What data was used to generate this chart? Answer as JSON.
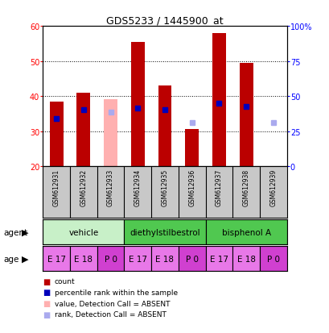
{
  "title": "GDS5233 / 1445900_at",
  "samples": [
    "GSM612931",
    "GSM612932",
    "GSM612933",
    "GSM612934",
    "GSM612935",
    "GSM612936",
    "GSM612937",
    "GSM612938",
    "GSM612939"
  ],
  "bar_values": [
    38.5,
    41.0,
    null,
    55.5,
    43.0,
    30.5,
    58.0,
    49.5,
    null
  ],
  "bar_absent_values": [
    null,
    null,
    39.0,
    null,
    null,
    null,
    null,
    null,
    null
  ],
  "rank_values": [
    33.5,
    36.0,
    null,
    36.5,
    36.0,
    null,
    38.0,
    37.0,
    null
  ],
  "rank_absent_values": [
    null,
    null,
    35.5,
    null,
    null,
    32.5,
    null,
    null,
    32.5
  ],
  "absent_bar": [
    false,
    false,
    true,
    false,
    false,
    false,
    false,
    false,
    true
  ],
  "absent_rank": [
    false,
    false,
    true,
    false,
    false,
    true,
    false,
    false,
    true
  ],
  "ylim_left": [
    20,
    60
  ],
  "ylim_right": [
    0,
    100
  ],
  "yticks_left": [
    20,
    30,
    40,
    50,
    60
  ],
  "yticks_right": [
    0,
    25,
    50,
    75,
    100
  ],
  "ytick_labels_right": [
    "0",
    "25",
    "50",
    "75",
    "100%"
  ],
  "agent_groups": [
    {
      "label": "vehicle",
      "cols": [
        0,
        1,
        2
      ],
      "color": "#c8f0c8"
    },
    {
      "label": "diethylstilbestrol",
      "cols": [
        3,
        4,
        5
      ],
      "color": "#50c850"
    },
    {
      "label": "bisphenol A",
      "cols": [
        6,
        7,
        8
      ],
      "color": "#50c850"
    }
  ],
  "age_labels": [
    "E 17",
    "E 18",
    "P 0",
    "E 17",
    "E 18",
    "P 0",
    "E 17",
    "E 18",
    "P 0"
  ],
  "age_colors": [
    "#e878e8",
    "#e878e8",
    "#d040d0",
    "#e878e8",
    "#e878e8",
    "#d040d0",
    "#e878e8",
    "#e878e8",
    "#d040d0"
  ],
  "bar_color": "#bb0000",
  "rank_color": "#0000bb",
  "bar_absent_color": "#ffb0b0",
  "rank_absent_color": "#aaaaee",
  "bar_width": 0.5,
  "sample_area_color": "#c8c8c8",
  "legend_items": [
    [
      "#bb0000",
      "count"
    ],
    [
      "#0000bb",
      "percentile rank within the sample"
    ],
    [
      "#ffb0b0",
      "value, Detection Call = ABSENT"
    ],
    [
      "#aaaaee",
      "rank, Detection Call = ABSENT"
    ]
  ]
}
